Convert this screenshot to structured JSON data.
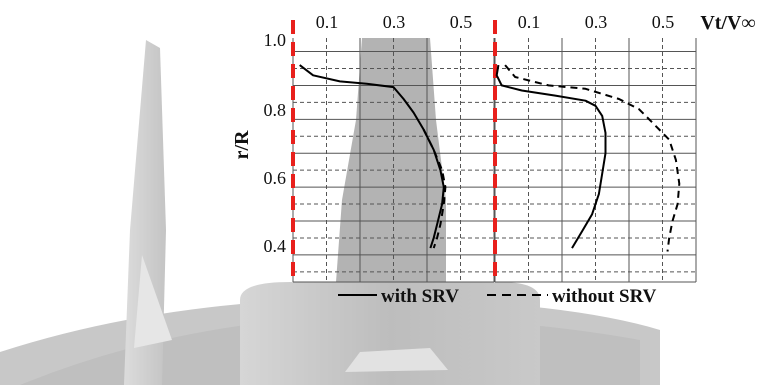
{
  "chart_data": [
    {
      "type": "line",
      "panel": "left",
      "xlabel": "Vt/V∞",
      "ylabel": "r/R",
      "x_ticks": [
        "0.1",
        "0.3",
        "0.5"
      ],
      "y_ticks": [
        "1.0",
        "0.8",
        "0.6",
        "0.4"
      ],
      "xlim": [
        0,
        0.6
      ],
      "ylim": [
        0.32,
        1.04
      ],
      "grid": true,
      "series": [
        {
          "name": "with SRV",
          "style": "solid",
          "points": [
            [
              0.02,
              0.96
            ],
            [
              0.06,
              0.93
            ],
            [
              0.14,
              0.912
            ],
            [
              0.22,
              0.905
            ],
            [
              0.3,
              0.895
            ],
            [
              0.33,
              0.86
            ],
            [
              0.36,
              0.82
            ],
            [
              0.39,
              0.77
            ],
            [
              0.42,
              0.71
            ],
            [
              0.44,
              0.65
            ],
            [
              0.45,
              0.6
            ],
            [
              0.445,
              0.55
            ],
            [
              0.43,
              0.49
            ],
            [
              0.42,
              0.45
            ],
            [
              0.41,
              0.42
            ]
          ]
        },
        {
          "name": "without SRV",
          "style": "dashed",
          "points": [
            [
              0.39,
              0.77
            ],
            [
              0.42,
              0.71
            ],
            [
              0.445,
              0.65
            ],
            [
              0.455,
              0.6
            ],
            [
              0.45,
              0.55
            ],
            [
              0.44,
              0.49
            ],
            [
              0.43,
              0.45
            ],
            [
              0.42,
              0.42
            ]
          ]
        }
      ]
    },
    {
      "type": "line",
      "panel": "right",
      "xlabel": "Vt/V∞",
      "ylabel": "r/R",
      "x_ticks": [
        "0.1",
        "0.3",
        "0.5"
      ],
      "xlim": [
        0,
        0.6
      ],
      "ylim": [
        0.32,
        1.04
      ],
      "grid": true,
      "series": [
        {
          "name": "with SRV",
          "style": "solid",
          "points": [
            [
              0.01,
              0.96
            ],
            [
              0.005,
              0.93
            ],
            [
              0.02,
              0.9
            ],
            [
              0.08,
              0.885
            ],
            [
              0.18,
              0.87
            ],
            [
              0.27,
              0.855
            ],
            [
              0.3,
              0.84
            ],
            [
              0.32,
              0.81
            ],
            [
              0.33,
              0.76
            ],
            [
              0.33,
              0.7
            ],
            [
              0.32,
              0.64
            ],
            [
              0.31,
              0.58
            ],
            [
              0.29,
              0.52
            ],
            [
              0.26,
              0.47
            ],
            [
              0.23,
              0.42
            ]
          ]
        },
        {
          "name": "without SRV",
          "style": "dashed",
          "points": [
            [
              0.03,
              0.96
            ],
            [
              0.06,
              0.925
            ],
            [
              0.16,
              0.9
            ],
            [
              0.27,
              0.89
            ],
            [
              0.37,
              0.86
            ],
            [
              0.43,
              0.83
            ],
            [
              0.47,
              0.79
            ],
            [
              0.52,
              0.74
            ],
            [
              0.54,
              0.68
            ],
            [
              0.55,
              0.61
            ],
            [
              0.545,
              0.55
            ],
            [
              0.53,
              0.5
            ],
            [
              0.52,
              0.45
            ],
            [
              0.515,
              0.41
            ]
          ]
        }
      ]
    }
  ],
  "legend": {
    "with_label": "with SRV",
    "without_label": "without SRV"
  },
  "colors": {
    "reference_line": "#e8201c",
    "grid": "#555555",
    "curve": "#000000",
    "blade_shadow": "#b3b3b3"
  }
}
